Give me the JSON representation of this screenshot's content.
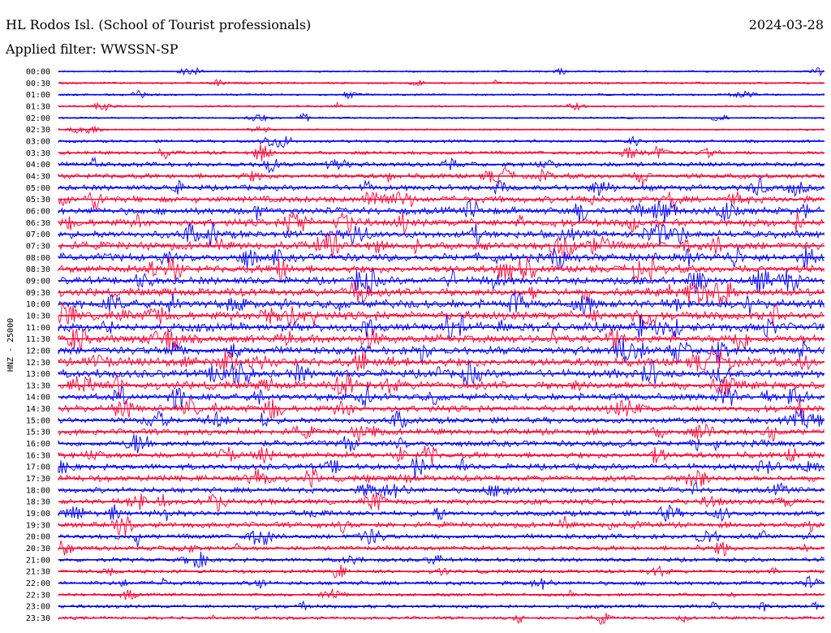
{
  "header": {
    "station": "HL Rodos Isl. (School of Tourist professionals)",
    "date": "2024-03-28",
    "filter": "Applied filter: WWSSN-SP"
  },
  "chart_data": {
    "type": "line",
    "ylabel": "HNZ - 25000",
    "row_labels": [
      "00:00",
      "00:30",
      "01:00",
      "01:30",
      "02:00",
      "02:30",
      "03:00",
      "03:30",
      "04:00",
      "04:30",
      "05:00",
      "05:30",
      "06:00",
      "06:30",
      "07:00",
      "07:30",
      "08:00",
      "08:30",
      "09:00",
      "09:30",
      "10:00",
      "10:30",
      "11:00",
      "11:30",
      "12:00",
      "12:30",
      "13:00",
      "13:30",
      "14:00",
      "14:30",
      "15:00",
      "15:30",
      "16:00",
      "16:30",
      "17:00",
      "17:30",
      "18:00",
      "18:30",
      "19:00",
      "19:30",
      "20:00",
      "20:30",
      "21:00",
      "21:30",
      "22:00",
      "22:30",
      "23:00",
      "23:30"
    ],
    "row_colors": [
      "#0000ff",
      "#ff0033"
    ],
    "relative_noise_level": [
      0.08,
      0.1,
      0.1,
      0.08,
      0.08,
      0.05,
      0.18,
      0.25,
      0.35,
      0.4,
      0.45,
      0.55,
      0.6,
      0.65,
      0.65,
      0.7,
      0.7,
      0.65,
      0.65,
      0.7,
      0.75,
      0.75,
      0.75,
      0.7,
      0.7,
      0.75,
      0.7,
      0.7,
      0.6,
      0.55,
      0.5,
      0.5,
      0.5,
      0.5,
      0.5,
      0.5,
      0.45,
      0.45,
      0.45,
      0.45,
      0.4,
      0.35,
      0.3,
      0.25,
      0.3,
      0.2,
      0.25,
      0.2
    ],
    "grid": false
  }
}
